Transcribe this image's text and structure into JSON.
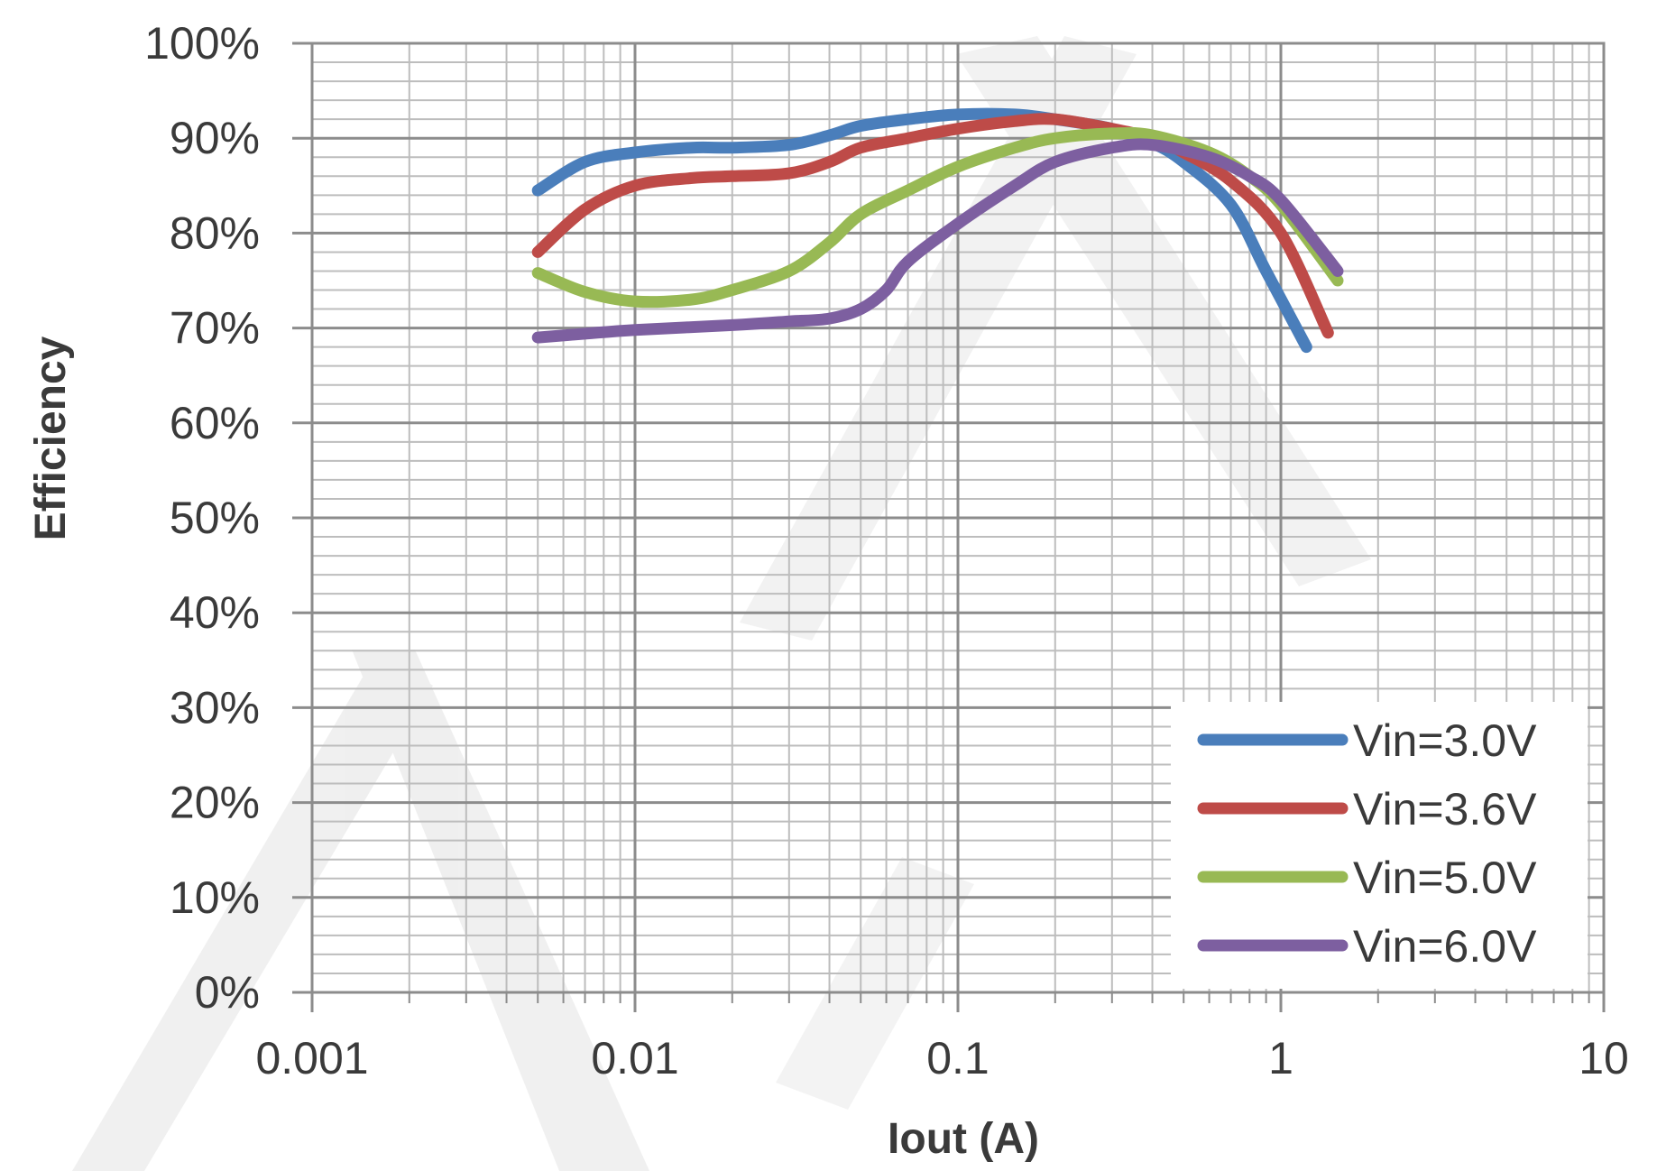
{
  "chart_data": {
    "type": "line",
    "title": "",
    "xlabel": "Iout (A)",
    "ylabel": "Efficiency",
    "x_scale": "log",
    "xlim": [
      0.001,
      10
    ],
    "ylim": [
      0,
      100
    ],
    "x_ticks": [
      "0.001",
      "0.01",
      "0.1",
      "1",
      "10"
    ],
    "y_ticks": [
      "0%",
      "10%",
      "20%",
      "30%",
      "40%",
      "50%",
      "60%",
      "70%",
      "80%",
      "90%",
      "100%"
    ],
    "grid": true,
    "legend_position": "bottom-right",
    "series": [
      {
        "name": "Vin=3.0V",
        "color": "#4a7ebb",
        "points": [
          [
            0.005,
            84.5
          ],
          [
            0.007,
            87.5
          ],
          [
            0.01,
            88.5
          ],
          [
            0.015,
            89.0
          ],
          [
            0.02,
            89.0
          ],
          [
            0.03,
            89.3
          ],
          [
            0.04,
            90.3
          ],
          [
            0.05,
            91.3
          ],
          [
            0.07,
            92.0
          ],
          [
            0.1,
            92.5
          ],
          [
            0.15,
            92.5
          ],
          [
            0.2,
            92.0
          ],
          [
            0.3,
            91.0
          ],
          [
            0.4,
            89.5
          ],
          [
            0.5,
            87.5
          ],
          [
            0.7,
            83.0
          ],
          [
            0.9,
            76.0
          ],
          [
            1.2,
            68.0
          ]
        ]
      },
      {
        "name": "Vin=3.6V",
        "color": "#be4b48",
        "points": [
          [
            0.005,
            78.0
          ],
          [
            0.007,
            82.5
          ],
          [
            0.01,
            85.0
          ],
          [
            0.015,
            85.8
          ],
          [
            0.02,
            86.0
          ],
          [
            0.03,
            86.3
          ],
          [
            0.04,
            87.5
          ],
          [
            0.05,
            89.0
          ],
          [
            0.07,
            90.0
          ],
          [
            0.1,
            91.0
          ],
          [
            0.15,
            91.8
          ],
          [
            0.2,
            92.0
          ],
          [
            0.3,
            91.0
          ],
          [
            0.4,
            90.0
          ],
          [
            0.5,
            88.5
          ],
          [
            0.7,
            85.5
          ],
          [
            1.0,
            80.0
          ],
          [
            1.4,
            69.5
          ]
        ]
      },
      {
        "name": "Vin=5.0V",
        "color": "#98b954",
        "points": [
          [
            0.005,
            75.8
          ],
          [
            0.007,
            73.8
          ],
          [
            0.01,
            72.8
          ],
          [
            0.015,
            73.0
          ],
          [
            0.02,
            74.0
          ],
          [
            0.03,
            76.0
          ],
          [
            0.04,
            79.0
          ],
          [
            0.05,
            82.0
          ],
          [
            0.07,
            84.5
          ],
          [
            0.1,
            87.0
          ],
          [
            0.15,
            89.0
          ],
          [
            0.2,
            90.0
          ],
          [
            0.3,
            90.5
          ],
          [
            0.4,
            90.3
          ],
          [
            0.6,
            88.5
          ],
          [
            0.8,
            86.0
          ],
          [
            1.0,
            83.0
          ],
          [
            1.5,
            75.0
          ]
        ]
      },
      {
        "name": "Vin=6.0V",
        "color": "#7d5fa0",
        "points": [
          [
            0.005,
            69.0
          ],
          [
            0.007,
            69.4
          ],
          [
            0.01,
            69.8
          ],
          [
            0.02,
            70.3
          ],
          [
            0.03,
            70.7
          ],
          [
            0.04,
            71.0
          ],
          [
            0.05,
            72.0
          ],
          [
            0.06,
            74.0
          ],
          [
            0.07,
            77.0
          ],
          [
            0.1,
            81.0
          ],
          [
            0.15,
            85.0
          ],
          [
            0.2,
            87.5
          ],
          [
            0.3,
            89.0
          ],
          [
            0.4,
            89.3
          ],
          [
            0.6,
            88.0
          ],
          [
            0.8,
            86.0
          ],
          [
            1.0,
            83.5
          ],
          [
            1.5,
            76.0
          ]
        ]
      }
    ]
  }
}
